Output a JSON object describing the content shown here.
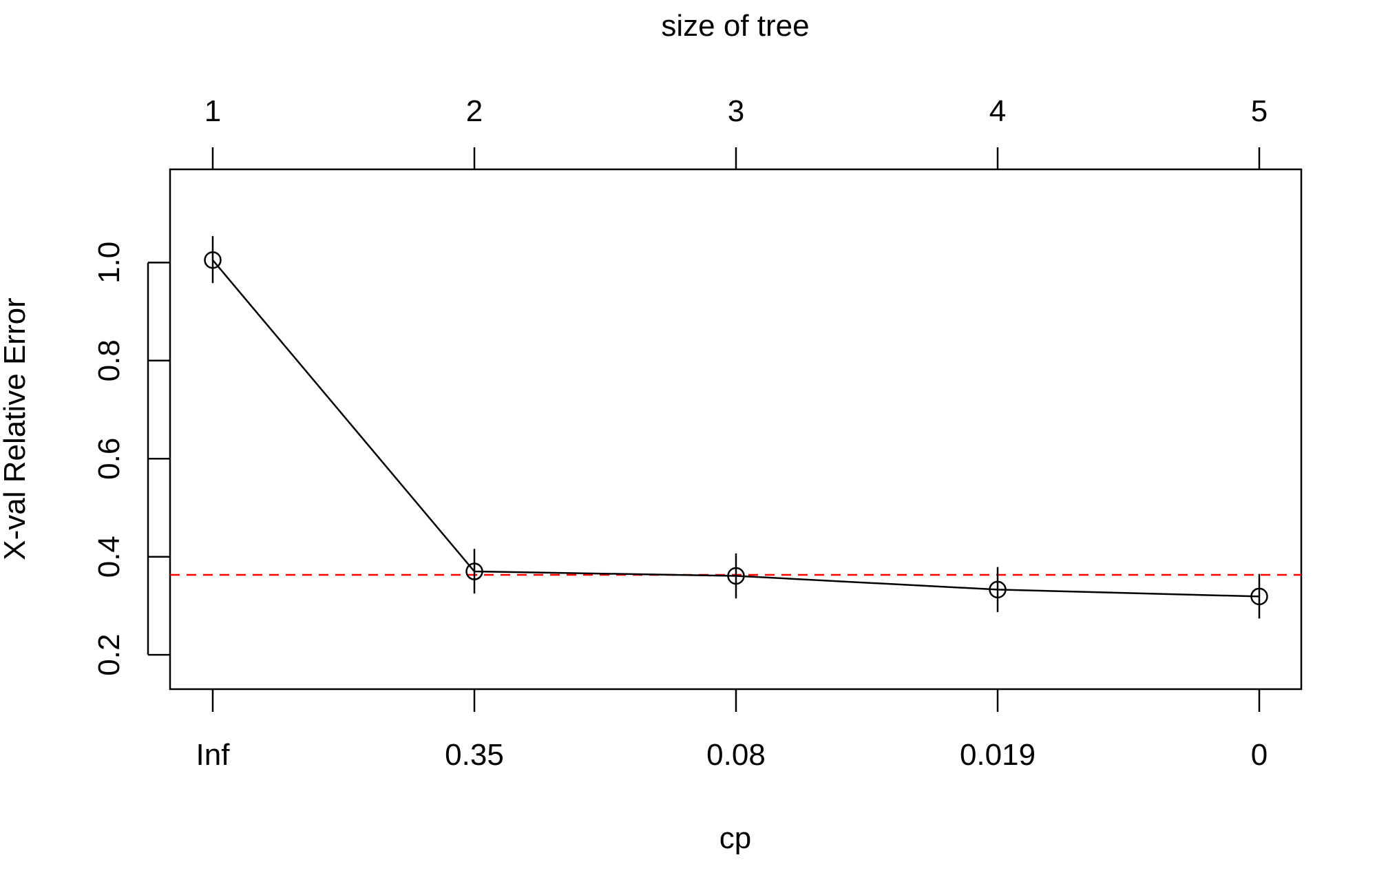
{
  "chart_data": {
    "type": "line",
    "top_axis": {
      "label": "size of tree",
      "tick_labels": [
        "1",
        "2",
        "3",
        "4",
        "5"
      ]
    },
    "xlabel": "cp",
    "x_tick_labels": [
      "Inf",
      "0.35",
      "0.08",
      "0.019",
      "0"
    ],
    "ylabel": "X-val Relative Error",
    "y_ticks": [
      "0.2",
      "0.4",
      "0.6",
      "0.8",
      "1.0"
    ],
    "ylim": [
      0.13,
      1.19
    ],
    "grid": false,
    "legend": "none",
    "series": [
      {
        "x": [
          1,
          2,
          3,
          4,
          5
        ],
        "values": [
          1.005,
          0.37,
          0.361,
          0.333,
          0.319
        ],
        "error_low": [
          0.958,
          0.325,
          0.315,
          0.287,
          0.274
        ],
        "error_high": [
          1.054,
          0.416,
          0.407,
          0.379,
          0.365
        ],
        "marker": "open-circle",
        "color": "#000000"
      }
    ],
    "reference_line": {
      "y": 0.363,
      "style": "dashed",
      "color": "#ff0000"
    }
  }
}
